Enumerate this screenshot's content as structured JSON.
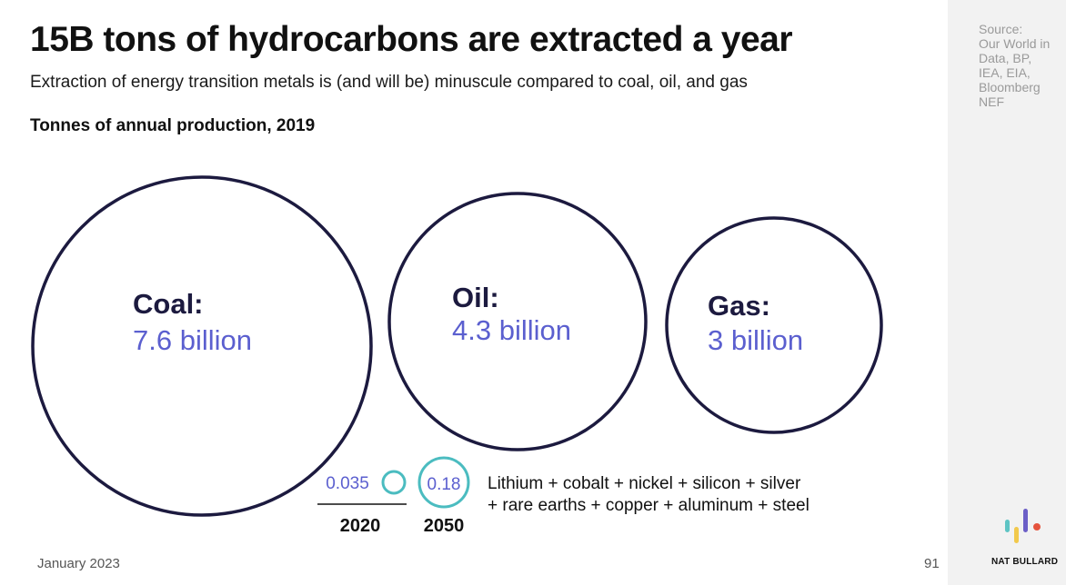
{
  "title": "15B tons of hydrocarbons are extracted a year",
  "subtitle": "Extraction of energy transition metals is (and will be) minuscule compared to coal, oil, and gas",
  "footer": {
    "date": "January 2023",
    "page_number": "91"
  },
  "source_lines": [
    "Source:",
    "Our World in",
    "Data, BP,",
    "IEA, EIA,",
    "Bloomberg",
    "NEF"
  ],
  "brand": "NAT BULLARD",
  "colors": {
    "circle_stroke": "#1c1a3f",
    "value_text": "#5b5fcf",
    "metals_stroke": "#4bbcc0",
    "sidebar_bg": "#f2f2f2",
    "logo_teal": "#5ec4c4",
    "logo_yellow": "#f2c94c",
    "logo_purple": "#6c5fc7",
    "logo_red": "#e5533d"
  },
  "chart_data": {
    "type": "bubble",
    "title": "Tonnes of annual production, 2019",
    "bubbles": [
      {
        "label": "Coal:",
        "value_text": "7.6 billion",
        "value": 7600000000
      },
      {
        "label": "Oil:",
        "value_text": "4.3 billion",
        "value": 4300000000
      },
      {
        "label": "Gas:",
        "value_text": "3 billion",
        "value": 3000000000
      }
    ],
    "metals": {
      "items": [
        {
          "year": "2020",
          "value_text": "0.035",
          "value": 0.035
        },
        {
          "year": "2050",
          "value_text": "0.18",
          "value": 0.18
        }
      ],
      "description_lines": [
        "Lithium + cobalt + nickel + silicon + silver",
        "+ rare earths + copper + aluminum + steel"
      ]
    }
  }
}
